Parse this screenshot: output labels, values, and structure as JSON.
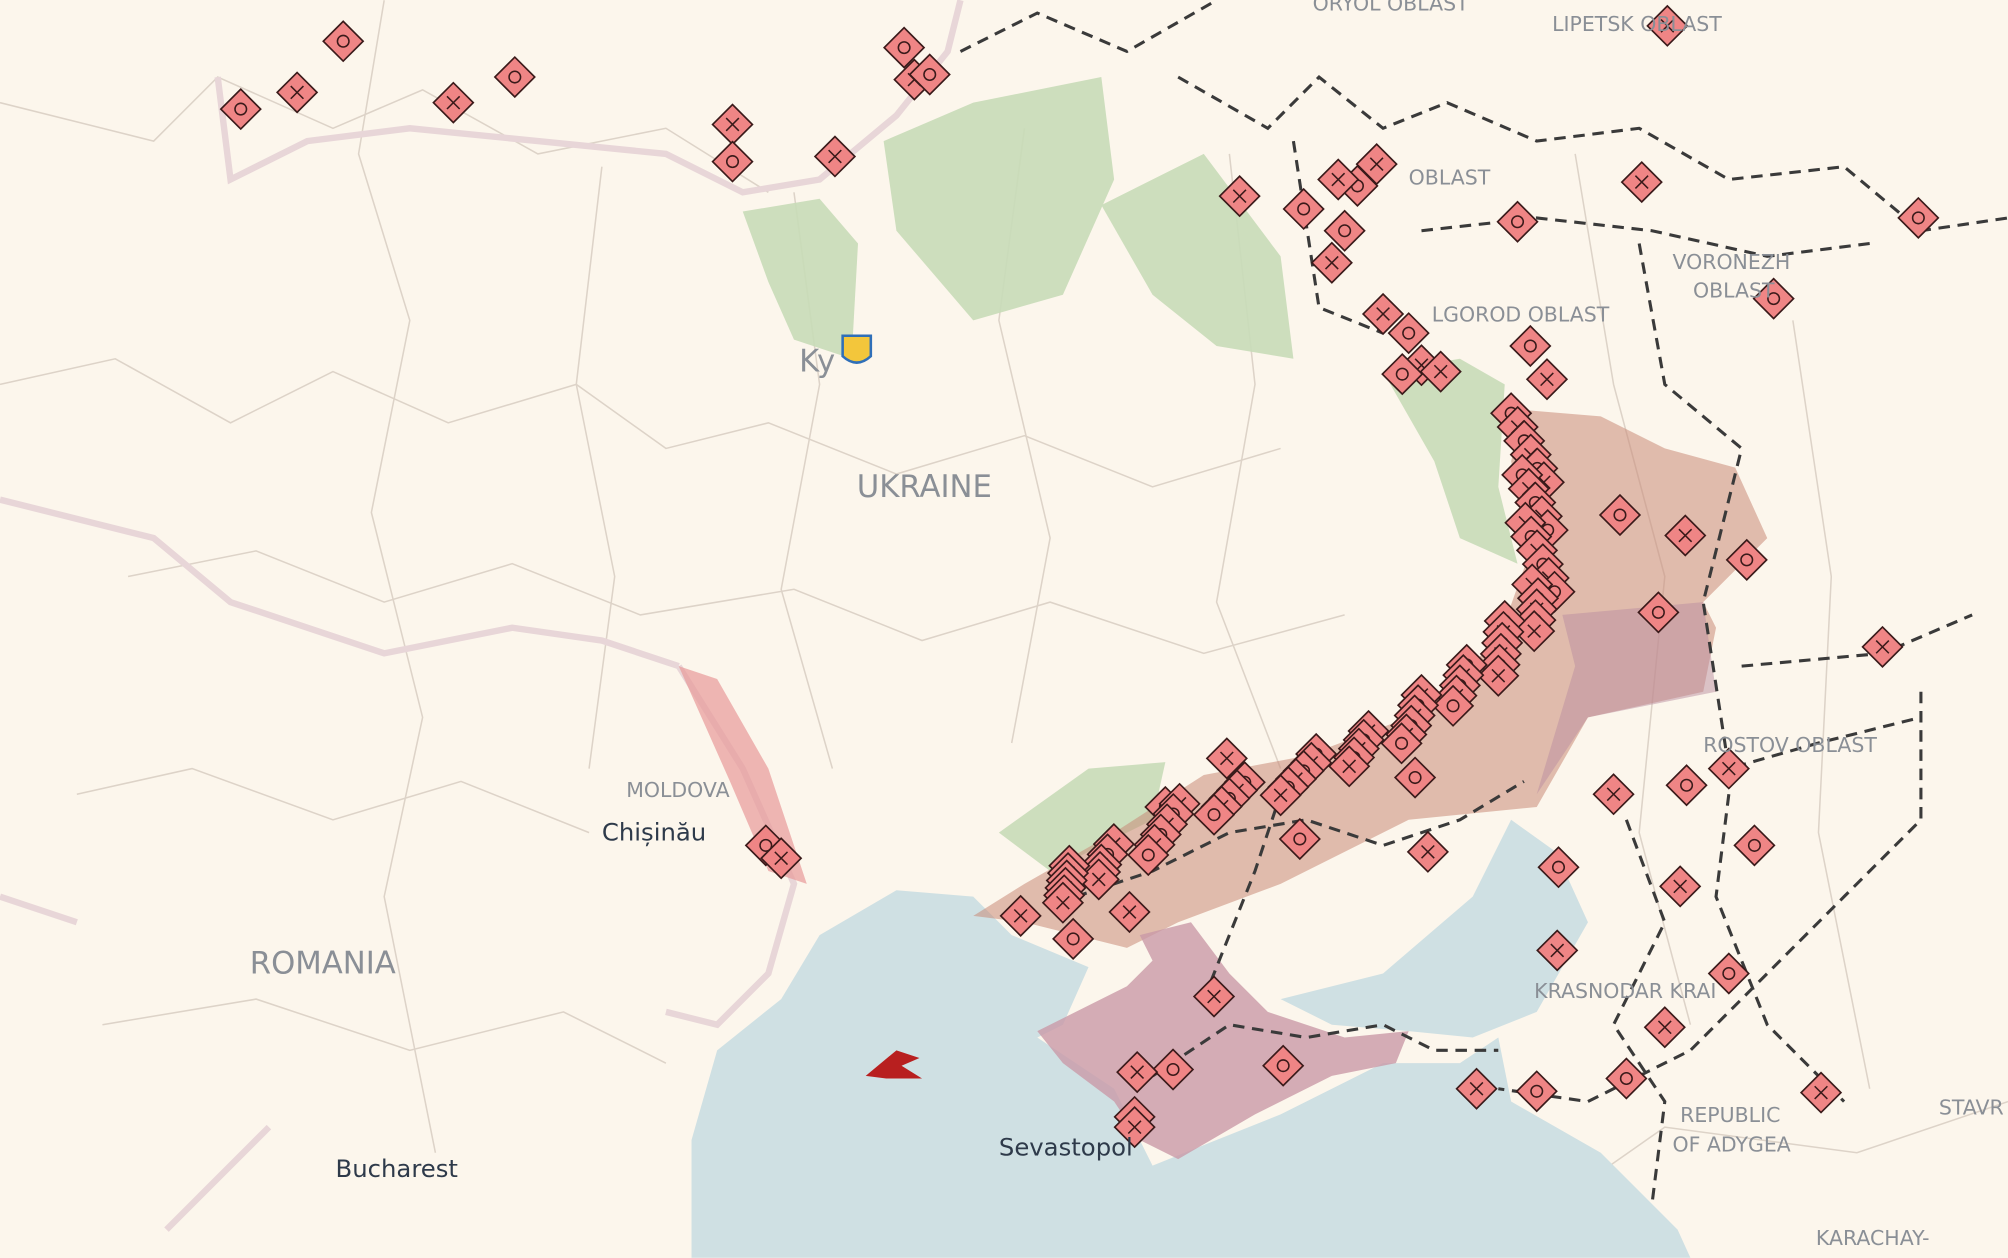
{
  "labels": [
    "ORYOL OBLAST",
    "LIPETSK OBLAST",
    "OBLAST",
    "VORONEZH",
    "OBLAST",
    "LGOROD OBLAST",
    "UKRAINE",
    "Ky",
    "MOLDOVA",
    "Chișinău",
    "ROMANIA",
    "Bucharest",
    "Sevastopol",
    "ROSTOV OBLAST",
    "KRASNODAR KRAI",
    "REPUBLIC",
    "OF ADYGEA",
    "KARACHAY-",
    "STAVR"
  ]
}
